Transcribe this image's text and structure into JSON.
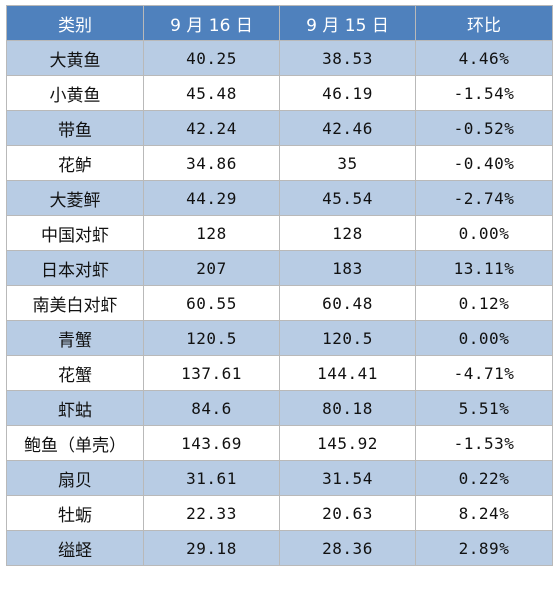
{
  "table": {
    "headers": {
      "category": "类别",
      "sep16": "9 月 16 日",
      "sep15": "9 月 15 日",
      "change": "环比"
    },
    "rows": [
      {
        "category": "大黄鱼",
        "sep16": "40.25",
        "sep15": "38.53",
        "change": "4.46%"
      },
      {
        "category": "小黄鱼",
        "sep16": "45.48",
        "sep15": "46.19",
        "change": "-1.54%"
      },
      {
        "category": "带鱼",
        "sep16": "42.24",
        "sep15": "42.46",
        "change": "-0.52%"
      },
      {
        "category": "花鲈",
        "sep16": "34.86",
        "sep15": "35",
        "change": "-0.40%"
      },
      {
        "category": "大菱鲆",
        "sep16": "44.29",
        "sep15": "45.54",
        "change": "-2.74%"
      },
      {
        "category": "中国对虾",
        "sep16": "128",
        "sep15": "128",
        "change": "0.00%"
      },
      {
        "category": "日本对虾",
        "sep16": "207",
        "sep15": "183",
        "change": "13.11%"
      },
      {
        "category": "南美白对虾",
        "sep16": "60.55",
        "sep15": "60.48",
        "change": "0.12%"
      },
      {
        "category": "青蟹",
        "sep16": "120.5",
        "sep15": "120.5",
        "change": "0.00%"
      },
      {
        "category": "花蟹",
        "sep16": "137.61",
        "sep15": "144.41",
        "change": "-4.71%"
      },
      {
        "category": "虾蛄",
        "sep16": "84.6",
        "sep15": "80.18",
        "change": "5.51%"
      },
      {
        "category": "鲍鱼（单壳）",
        "sep16": "143.69",
        "sep15": "145.92",
        "change": "-1.53%"
      },
      {
        "category": "扇贝",
        "sep16": "31.61",
        "sep15": "31.54",
        "change": "0.22%"
      },
      {
        "category": "牡蛎",
        "sep16": "22.33",
        "sep15": "20.63",
        "change": "8.24%"
      },
      {
        "category": "缢蛏",
        "sep16": "29.18",
        "sep15": "28.36",
        "change": "2.89%"
      }
    ]
  },
  "colors": {
    "header_bg": "#4f81bd",
    "shaded_row_bg": "#b8cce4",
    "plain_row_bg": "#ffffff"
  }
}
